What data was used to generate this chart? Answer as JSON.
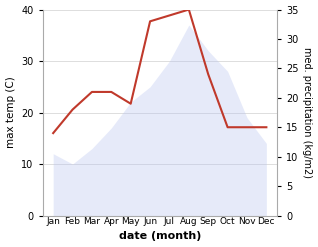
{
  "months": [
    "Jan",
    "Feb",
    "Mar",
    "Apr",
    "May",
    "Jun",
    "Jul",
    "Aug",
    "Sep",
    "Oct",
    "Nov",
    "Dec"
  ],
  "temp": [
    12,
    10,
    13,
    17,
    22,
    25,
    30,
    37,
    32,
    28,
    19,
    14
  ],
  "precip": [
    14,
    18,
    21,
    21,
    19,
    33,
    34,
    35,
    24,
    15,
    15,
    15
  ],
  "temp_color": "#c0392b",
  "precip_fill_color": "#b8c4f0",
  "temp_ylim": [
    0,
    40
  ],
  "precip_ylim": [
    0,
    35
  ],
  "xlabel": "date (month)",
  "ylabel_left": "max temp (C)",
  "ylabel_right": "med. precipitation (kg/m2)",
  "bg_color": "#ffffff",
  "grid_color": "#d0d0d0"
}
